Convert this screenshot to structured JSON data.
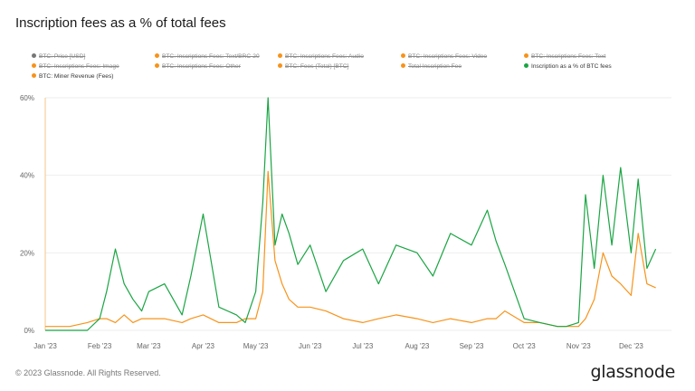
{
  "title": "Inscription fees as a % of total fees",
  "copyright": "© 2023 Glassnode. All Rights Reserved.",
  "brand": "glassnode",
  "legend": [
    {
      "label": "BTC: Price [USD]",
      "color": "#777777",
      "active": false
    },
    {
      "label": "BTC: Inscriptions Fees: Text/BRC-20",
      "color": "#f7931a",
      "active": false
    },
    {
      "label": "BTC: Inscriptions Fees: Audio",
      "color": "#f7931a",
      "active": false
    },
    {
      "label": "BTC: Inscriptions Fees: Video",
      "color": "#f7931a",
      "active": false
    },
    {
      "label": "BTC: Inscriptions Fees: Text",
      "color": "#f7931a",
      "active": false
    },
    {
      "label": "BTC: Inscriptions Fees: Image",
      "color": "#f7931a",
      "active": false
    },
    {
      "label": "BTC: Inscriptions Fees: Other",
      "color": "#f7931a",
      "active": false
    },
    {
      "label": "BTC: Fees (Total) [BTC]",
      "color": "#f7931a",
      "active": false
    },
    {
      "label": "Total Inscription Fee",
      "color": "#f7931a",
      "active": false
    },
    {
      "label": "Inscription as a % of BTC fees",
      "color": "#1aa543",
      "active": true
    },
    {
      "label": "BTC: Miner Revenue (Fees)",
      "color": "#f7931a",
      "active": true
    }
  ],
  "chart_data": {
    "type": "line",
    "title": "Inscription fees as a % of total fees",
    "xlabel": "",
    "ylabel": "",
    "ylim": [
      0,
      60
    ],
    "y_ticks": [
      "0%",
      "20%",
      "40%",
      "60%"
    ],
    "x_ticks": [
      "Jan '23",
      "Feb '23",
      "Mar '23",
      "Apr '23",
      "May '23",
      "Jun '23",
      "Jul '23",
      "Aug '23",
      "Sep '23",
      "Oct '23",
      "Nov '23",
      "Dec '23"
    ],
    "x": [
      "2023-01-01",
      "2023-01-15",
      "2023-01-25",
      "2023-02-01",
      "2023-02-05",
      "2023-02-10",
      "2023-02-15",
      "2023-02-20",
      "2023-02-25",
      "2023-03-01",
      "2023-03-10",
      "2023-03-20",
      "2023-03-25",
      "2023-04-01",
      "2023-04-10",
      "2023-04-20",
      "2023-04-25",
      "2023-05-01",
      "2023-05-05",
      "2023-05-08",
      "2023-05-12",
      "2023-05-16",
      "2023-05-20",
      "2023-05-25",
      "2023-06-01",
      "2023-06-10",
      "2023-06-20",
      "2023-07-01",
      "2023-07-10",
      "2023-07-20",
      "2023-08-01",
      "2023-08-10",
      "2023-08-20",
      "2023-09-01",
      "2023-09-10",
      "2023-09-15",
      "2023-09-20",
      "2023-10-01",
      "2023-10-10",
      "2023-10-20",
      "2023-10-25",
      "2023-11-01",
      "2023-11-05",
      "2023-11-10",
      "2023-11-15",
      "2023-11-20",
      "2023-11-25",
      "2023-12-01",
      "2023-12-05",
      "2023-12-10",
      "2023-12-15"
    ],
    "series": [
      {
        "name": "Inscription as a % of BTC fees",
        "color": "#1aa543",
        "values": [
          0,
          0,
          0,
          3,
          10,
          21,
          12,
          8,
          5,
          10,
          12,
          4,
          14,
          30,
          6,
          4,
          2,
          10,
          33,
          60,
          22,
          30,
          25,
          17,
          22,
          10,
          18,
          21,
          12,
          22,
          20,
          14,
          25,
          22,
          31,
          23,
          17,
          3,
          2,
          1,
          1,
          2,
          35,
          16,
          40,
          22,
          42,
          20,
          39,
          16,
          21
        ]
      },
      {
        "name": "BTC: Miner Revenue (Fees)",
        "color": "#f7931a",
        "values": [
          1,
          1,
          2,
          3,
          3,
          2,
          4,
          2,
          3,
          3,
          3,
          2,
          3,
          4,
          2,
          2,
          3,
          3,
          10,
          41,
          18,
          12,
          8,
          6,
          6,
          5,
          3,
          2,
          3,
          4,
          3,
          2,
          3,
          2,
          3,
          3,
          5,
          2,
          2,
          1,
          1,
          1,
          3,
          8,
          20,
          14,
          12,
          9,
          25,
          12,
          11
        ]
      }
    ],
    "grid": true,
    "legend_position": "top"
  }
}
